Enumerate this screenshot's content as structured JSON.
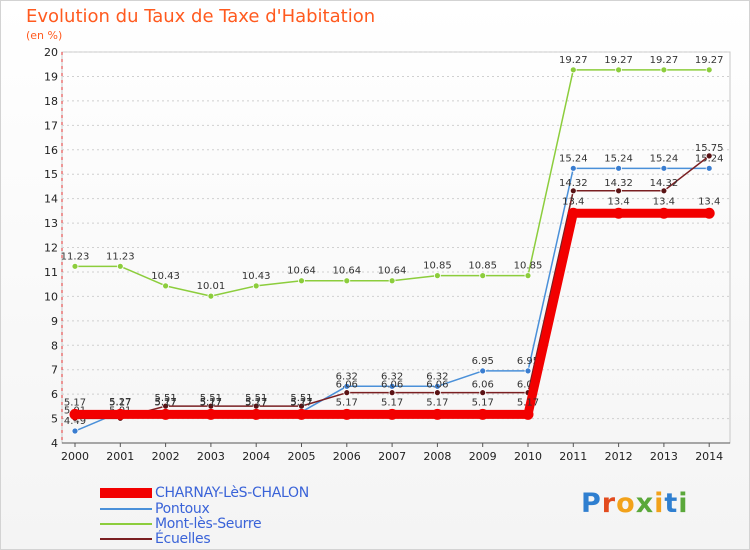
{
  "title": "Evolution du Taux de Taxe d'Habitation",
  "unit_label": "(en %)",
  "logo": "Proxiti",
  "chart_data": {
    "type": "line",
    "title": "Evolution du Taux de Taxe d'Habitation",
    "ylabel": "(en %)",
    "xlabel": "",
    "x": [
      "2000",
      "2001",
      "2002",
      "2003",
      "2004",
      "2005",
      "2006",
      "2007",
      "2008",
      "2009",
      "2010",
      "2011",
      "2012",
      "2013",
      "2014"
    ],
    "yticks": [
      4,
      5,
      6,
      7,
      8,
      9,
      10,
      11,
      12,
      13,
      14,
      15,
      16,
      17,
      18,
      19,
      20
    ],
    "ylim": [
      4,
      20
    ],
    "grid": "horizontal dashed",
    "legend": "bottom-left",
    "series": [
      {
        "name": "Mont-lès-Seurre",
        "color": "#8ccd3c",
        "values": [
          11.23,
          11.23,
          10.43,
          10.01,
          10.43,
          10.64,
          10.64,
          10.64,
          10.85,
          10.85,
          10.85,
          19.27,
          19.27,
          19.27,
          19.27
        ],
        "labels": [
          "11.23",
          "11.23",
          "10.43",
          "10.01",
          "10.43",
          "10.64",
          "10.64",
          "10.64",
          "10.85",
          "10.85",
          "10.85",
          "19.27",
          "19.27",
          "19.27",
          "19.27"
        ]
      },
      {
        "name": "Pontoux",
        "color": "#4a90d9",
        "values": [
          4.49,
          5.27,
          5.27,
          5.27,
          5.27,
          5.27,
          6.32,
          6.32,
          6.32,
          6.95,
          6.95,
          15.24,
          15.24,
          15.24,
          15.24
        ],
        "labels": [
          "4.49",
          "5.27",
          "5.27",
          "5.27",
          "5.27",
          "5.27",
          "6.32",
          "6.32",
          "6.32",
          "6.95",
          "6.95",
          "15.24",
          "15.24",
          "15.24",
          "15.24"
        ]
      },
      {
        "name": "Écuelles",
        "color": "#7a1f22",
        "values": [
          5.01,
          5.01,
          5.51,
          5.51,
          5.51,
          5.51,
          6.06,
          6.06,
          6.06,
          6.06,
          6.06,
          14.32,
          14.32,
          14.32,
          15.75
        ],
        "labels": [
          "5.01",
          "5.01",
          "5.51",
          "5.51",
          "5.51",
          "5.51",
          "6.06",
          "6.06",
          "6.06",
          "6.06",
          "6.06",
          "14.32",
          "14.32",
          "14.32",
          "15.75"
        ]
      },
      {
        "name": "CHARNAY-LèS-CHALON",
        "color": "#f20000",
        "values": [
          5.17,
          5.17,
          5.17,
          5.17,
          5.17,
          5.17,
          5.17,
          5.17,
          5.17,
          5.17,
          5.17,
          13.4,
          13.4,
          13.4,
          13.4
        ],
        "labels": [
          "5.17",
          "5.17",
          "5.17",
          "5.17",
          "5.17",
          "5.17",
          "5.17",
          "5.17",
          "5.17",
          "5.17",
          "5.17",
          "13.4",
          "13.4",
          "13.4",
          "13.4"
        ]
      }
    ]
  },
  "legend": [
    {
      "label": "CHARNAY-LèS-CHALON",
      "color": "#f20000"
    },
    {
      "label": "Pontoux",
      "color": "#4a90d9"
    },
    {
      "label": "Mont-lès-Seurre",
      "color": "#8ccd3c"
    },
    {
      "label": "Écuelles",
      "color": "#7a1f22"
    }
  ]
}
